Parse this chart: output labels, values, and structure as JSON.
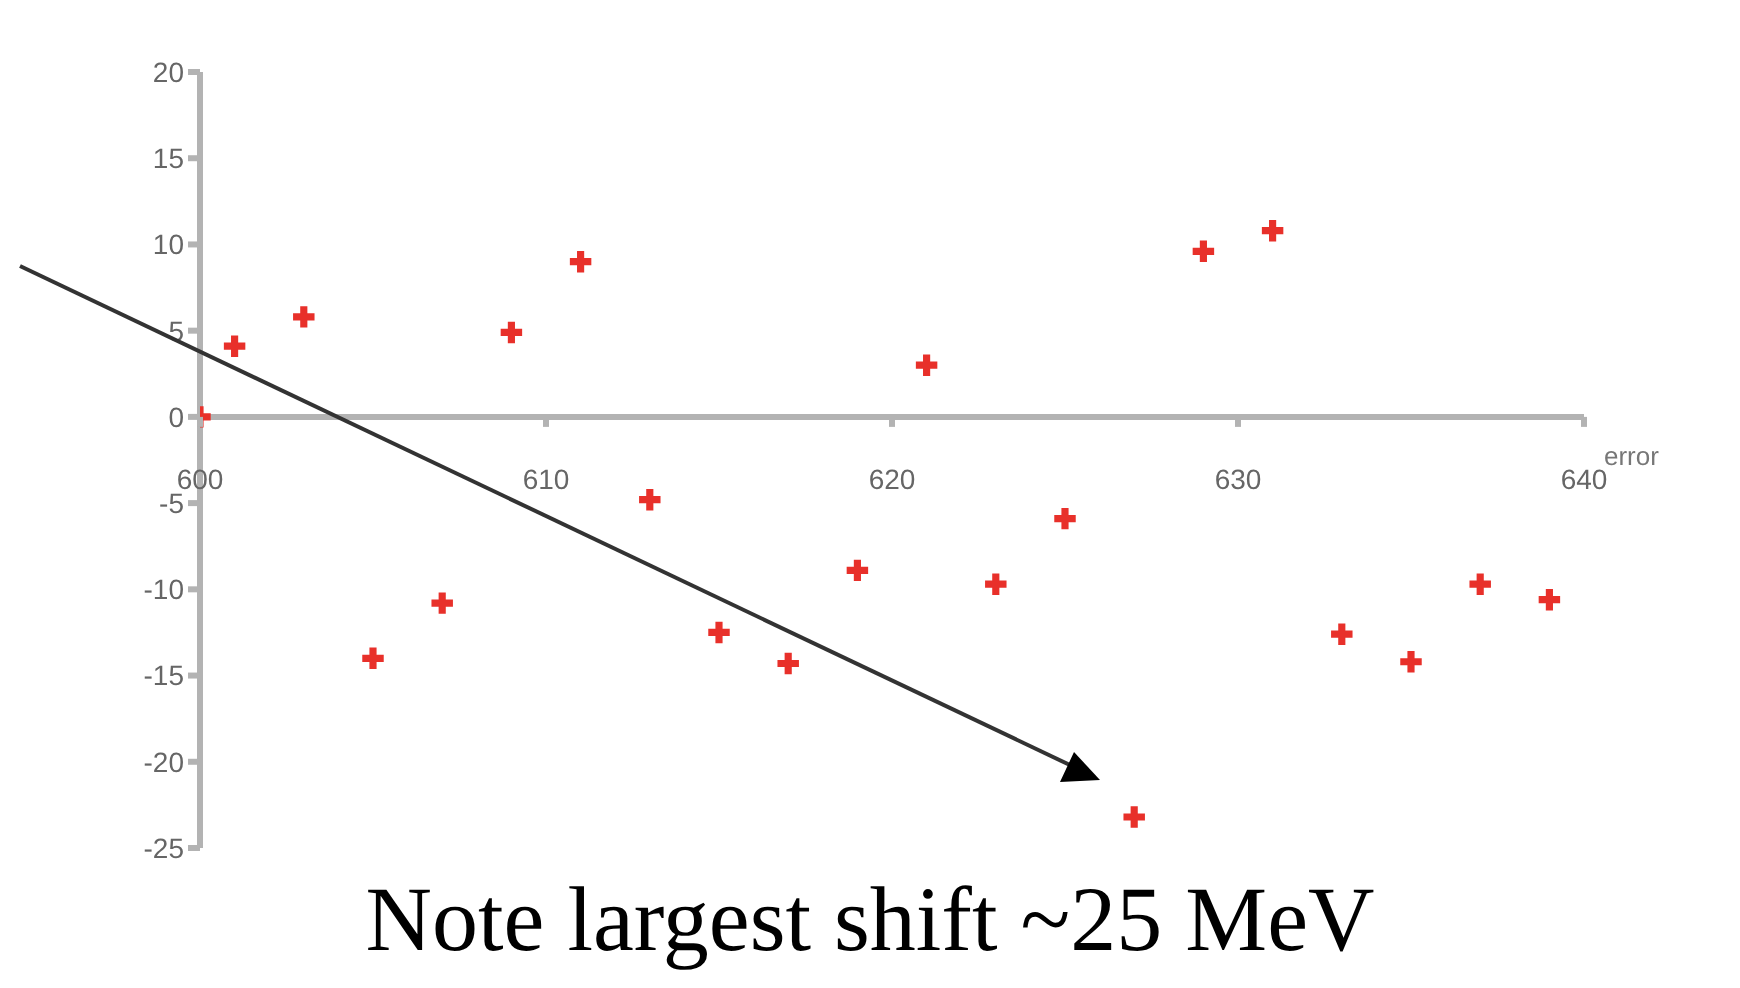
{
  "chart_data": {
    "type": "scatter",
    "xlabel": "error",
    "x": [
      600,
      601,
      603,
      605,
      607,
      609,
      611,
      613,
      615,
      617,
      619,
      621,
      623,
      625,
      627,
      629,
      631,
      633,
      635,
      637,
      639
    ],
    "series": [
      {
        "color": "#e8302a",
        "values": [
          0,
          4.1,
          5.8,
          -14,
          -10.8,
          4.9,
          9,
          -4.8,
          -12.5,
          -14.3,
          -8.9,
          3,
          -9.7,
          -5.9,
          -23.2,
          9.6,
          10.8,
          -12.6,
          -14.2,
          -9.7,
          -10.6
        ]
      }
    ],
    "xlim": [
      600,
      640
    ],
    "xticks": [
      600,
      610,
      620,
      630,
      640
    ],
    "ylim": [
      -25,
      20
    ],
    "yticks": [
      -25,
      -20,
      -15,
      -10,
      -5,
      0,
      5,
      10,
      15,
      20
    ],
    "marker": "cross",
    "grid": false,
    "legend": false,
    "annotations": [
      "Note largest shift ~25 MeV"
    ]
  }
}
